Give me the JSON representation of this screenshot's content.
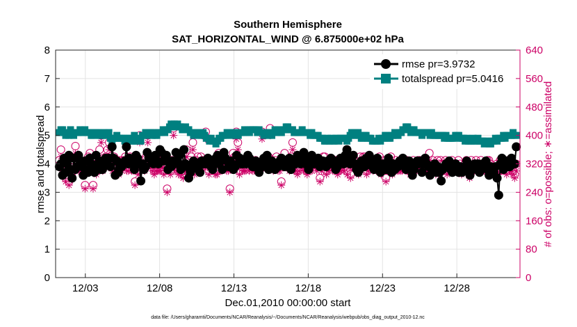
{
  "chart_data": {
    "type": "line",
    "title": "Southern Hemisphere",
    "subtitle": "SAT_HORIZONTAL_WIND @ 6.875000e+02 hPa",
    "xlabel": "Dec.01,2010 00:00:00 start",
    "ylabel_left": "rmse and totalspread",
    "ylabel_right": "# of obs: o=possible; ∗=assimilated",
    "xlim": [
      1,
      32.25
    ],
    "ylim_left": [
      0,
      8
    ],
    "ylim_right": [
      0,
      640
    ],
    "yticks_left": [
      "0",
      "1",
      "2",
      "3",
      "4",
      "5",
      "6",
      "7",
      "8"
    ],
    "yticks_right": [
      "0",
      "80",
      "160",
      "240",
      "320",
      "400",
      "480",
      "560",
      "640"
    ],
    "xticks": [
      {
        "day": 3,
        "label": "12/03"
      },
      {
        "day": 8,
        "label": "12/08"
      },
      {
        "day": 13,
        "label": "12/13"
      },
      {
        "day": 18,
        "label": "12/18"
      },
      {
        "day": 23,
        "label": "12/23"
      },
      {
        "day": 28,
        "label": "12/28"
      }
    ],
    "grid": true,
    "legend_location": "top-right",
    "series": [
      {
        "name": "rmse",
        "legend_label": "rmse pr=3.9732",
        "color": "#000000",
        "marker": "circle",
        "axis": "left",
        "values": [
          3.9,
          4.0,
          3.6,
          4.2,
          3.7,
          4.0,
          4.3,
          3.8,
          3.5,
          4.2,
          3.8,
          3.9,
          4.3,
          4.0,
          3.9,
          3.6,
          4.1,
          3.8,
          3.7,
          4.2,
          4.0,
          3.9,
          3.7,
          4.3,
          3.9,
          4.1,
          3.8,
          3.8,
          4.0,
          4.2,
          4.1,
          4.2,
          3.9,
          4.6,
          4.2,
          3.6,
          4.1,
          3.7,
          3.9,
          3.9,
          4.0,
          4.1,
          4.6,
          4.0,
          4.2,
          4.0,
          4.1,
          3.8,
          4.3,
          4.2,
          4.0,
          3.4,
          4.0,
          3.8,
          3.9,
          4.4,
          4.2,
          4.2,
          4.1,
          4.0,
          4.3,
          4.1,
          4.0,
          4.5,
          4.4,
          4.1,
          4.2,
          4.3,
          3.8,
          4.0,
          3.9,
          4.1,
          4.0,
          4.4,
          4.1,
          4.3,
          3.8,
          3.9,
          4.5,
          4.0,
          3.9,
          3.5,
          3.7,
          3.8,
          4.1,
          4.0,
          3.9,
          3.8,
          3.7,
          4.1,
          4.0,
          4.0,
          4.0,
          4.2,
          4.1,
          3.9,
          3.8,
          4.0,
          4.2,
          4.3,
          4.0,
          4.1,
          3.8,
          4.4,
          4.2,
          4.1,
          3.9,
          4.1,
          4.0,
          3.8,
          3.9,
          4.3,
          4.0,
          4.2,
          4.0,
          4.0,
          4.1,
          4.0,
          4.3,
          4.2,
          4.1,
          3.9,
          3.9,
          4.1,
          4.0,
          3.7,
          4.0,
          3.9,
          4.2,
          4.1,
          4.3,
          3.8,
          3.9,
          4.1,
          4.0,
          3.8,
          4.0,
          3.9,
          4.1,
          4.2,
          4.0,
          3.9,
          4.0,
          3.9,
          4.2,
          3.8,
          4.1,
          4.0,
          4.0,
          4.3,
          4.2,
          4.0,
          4.1,
          4.4,
          4.0,
          4.2,
          3.8,
          4.1,
          4.3,
          4.0,
          4.1,
          4.0,
          4.2,
          3.9,
          4.0,
          4.1,
          4.0,
          3.9,
          4.1,
          4.0,
          4.2,
          4.0,
          4.1,
          3.8,
          3.9,
          4.0,
          4.2,
          4.1,
          4.0,
          4.3,
          4.5,
          4.2,
          4.0,
          4.1,
          4.3,
          4.0,
          3.8,
          3.7,
          3.8,
          4.1,
          4.0,
          3.9,
          4.2,
          4.0,
          4.3,
          4.1,
          3.9,
          3.8,
          4.0,
          4.2,
          3.9,
          3.7,
          3.9,
          4.0,
          3.8,
          3.8,
          4.2,
          3.9,
          3.7,
          4.0,
          3.8,
          3.9,
          3.9,
          4.1,
          4.0,
          4.2,
          4.0,
          3.8,
          3.9,
          4.1,
          4.0,
          3.6,
          3.8,
          4.0,
          4.1,
          4.0,
          4.1,
          3.7,
          4.0,
          4.2,
          4.0,
          3.9,
          3.6,
          3.9,
          3.8,
          4.0,
          3.7,
          3.9,
          3.7,
          3.4,
          3.8,
          3.9,
          4.0,
          3.9,
          4.1,
          3.8,
          3.7,
          3.9,
          4.0,
          3.8,
          3.7,
          3.9,
          3.7,
          3.8,
          3.9,
          4.1,
          4.0,
          3.6,
          3.8,
          3.9,
          4.0,
          3.8,
          4.0,
          3.7,
          3.8,
          4.0,
          3.9,
          4.1,
          3.8,
          3.6,
          3.9,
          3.8,
          3.7,
          3.9,
          3.5,
          2.9,
          4.0,
          4.2,
          3.8,
          3.9,
          4.1,
          3.9,
          3.9,
          4.2,
          4.0,
          4.0,
          4.6
        ]
      },
      {
        "name": "totalspread",
        "legend_label": "totalspread pr=5.0416",
        "color": "#008080",
        "marker": "square",
        "axis": "left",
        "values": [
          5.1,
          5.2,
          5.2,
          5.1,
          5.0,
          5.1,
          5.0,
          5.2,
          5.1,
          5.0,
          5.1,
          5.1,
          5.1,
          5.2,
          5.1,
          5.1,
          5.2,
          5.1,
          5.1,
          5.1,
          5.0,
          5.0,
          5.1,
          5.1,
          5.1,
          5.0,
          5.0,
          5.0,
          5.1,
          5.0,
          5.0,
          5.1,
          4.9,
          4.8,
          4.9,
          4.9,
          5.0,
          4.9,
          4.9,
          4.9,
          4.9,
          4.8,
          4.8,
          4.9,
          4.9,
          4.8,
          4.8,
          5.0,
          4.8,
          4.9,
          4.8,
          4.8,
          5.0,
          5.0,
          5.1,
          5.0,
          5.1,
          5.1,
          5.0,
          5.1,
          5.0,
          5.0,
          5.1,
          5.1,
          5.1,
          5.2,
          5.1,
          5.2,
          5.2,
          5.3,
          5.4,
          5.3,
          5.4,
          5.3,
          5.4,
          5.3,
          5.3,
          5.2,
          5.2,
          5.3,
          5.2,
          5.2,
          5.1,
          5.1,
          5.0,
          5.1,
          5.1,
          5.0,
          5.1,
          5.0,
          5.1,
          5.0,
          4.9,
          4.9,
          4.8,
          4.9,
          4.8,
          4.8,
          4.7,
          4.8,
          4.9,
          4.9,
          5.0,
          5.0,
          5.0,
          5.1,
          5.1,
          5.1,
          5.0,
          5.1,
          5.1,
          5.0,
          5.0,
          5.1,
          5.1,
          5.1,
          5.2,
          5.1,
          5.2,
          5.1,
          5.2,
          5.2,
          5.2,
          5.2,
          5.1,
          5.2,
          5.1,
          5.1,
          5.0,
          5.1,
          5.1,
          5.0,
          5.1,
          5.0,
          5.1,
          5.2,
          5.1,
          5.2,
          5.1,
          5.1,
          5.2,
          5.2,
          5.3,
          5.3,
          5.2,
          5.2,
          5.2,
          5.1,
          5.1,
          5.1,
          5.1,
          5.1,
          5.2,
          5.1,
          5.1,
          5.1,
          5.1,
          5.0,
          5.1,
          5.0,
          5.0,
          5.0,
          5.0,
          4.9,
          4.9,
          4.9,
          4.8,
          4.8,
          4.9,
          4.8,
          4.9,
          4.8,
          4.8,
          4.9,
          4.9,
          4.8,
          4.9,
          4.9,
          4.9,
          4.9,
          4.8,
          4.9,
          5.0,
          5.1,
          5.0,
          5.1,
          5.0,
          5.1,
          5.0,
          4.9,
          4.9,
          5.0,
          5.0,
          4.9,
          4.9,
          4.9,
          4.8,
          4.8,
          4.8,
          4.8,
          4.9,
          4.8,
          4.9,
          4.9,
          5.0,
          5.0,
          4.9,
          4.9,
          5.0,
          5.0,
          5.1,
          5.0,
          5.0,
          5.1,
          5.1,
          5.2,
          5.2,
          5.3,
          5.3,
          5.2,
          5.1,
          5.2,
          5.2,
          5.1,
          5.1,
          5.1,
          5.1,
          5.0,
          5.1,
          5.1,
          5.1,
          5.1,
          5.0,
          5.1,
          5.0,
          5.0,
          5.0,
          5.0,
          5.0,
          5.0,
          5.0,
          4.9,
          5.0,
          4.9,
          4.9,
          4.9,
          4.9,
          4.9,
          5.0,
          5.0,
          5.0,
          4.9,
          4.9,
          4.9,
          4.8,
          4.9,
          4.8,
          4.8,
          4.8,
          4.9,
          4.8,
          4.8,
          4.9,
          4.8,
          4.8,
          4.8,
          4.7,
          4.8,
          4.8,
          4.7,
          4.7,
          4.8,
          4.8,
          4.9,
          4.8,
          4.9,
          4.9,
          4.9,
          5.0,
          4.9,
          5.0,
          5.0,
          5.0,
          5.0,
          5.1,
          5.0,
          5.0
        ]
      },
      {
        "name": "obs_possible",
        "color": "#cc0066",
        "marker": "open-circle",
        "axis": "right",
        "values": [
          330,
          360,
          320,
          310,
          280,
          330,
          270,
          320,
          300,
          330,
          370,
          330,
          340,
          310,
          300,
          320,
          260,
          330,
          340,
          350,
          320,
          260,
          340,
          300,
          310,
          360,
          400,
          310,
          330,
          340,
          360,
          380,
          330,
          310,
          340,
          320,
          330,
          300,
          330,
          310,
          330,
          340,
          320,
          310,
          340,
          320,
          310,
          270,
          330,
          300,
          400,
          320,
          330,
          320,
          340,
          400,
          340,
          330,
          320,
          300,
          320,
          310,
          320,
          310,
          330,
          300,
          320,
          250,
          330,
          300,
          330,
          420,
          330,
          320,
          300,
          310,
          300,
          290,
          320,
          360,
          300,
          330,
          340,
          380,
          300,
          330,
          340,
          310,
          340,
          330,
          330,
          410,
          330,
          300,
          330,
          320,
          330,
          300,
          300,
          350,
          320,
          310,
          330,
          330,
          320,
          310,
          250,
          330,
          350,
          340,
          410,
          380,
          300,
          330,
          310,
          320,
          310,
          340,
          320,
          330,
          320,
          320,
          330,
          320,
          320,
          320,
          410,
          330,
          330,
          340,
          340,
          420,
          330,
          310,
          330,
          340,
          310,
          320,
          270,
          330,
          350,
          330,
          330,
          310,
          340,
          380,
          320,
          320,
          300,
          310,
          340,
          330,
          320,
          320,
          300,
          330,
          320,
          320,
          330,
          330,
          320,
          330,
          280,
          320,
          340,
          340,
          300,
          310,
          330,
          330,
          320,
          320,
          330,
          300,
          320,
          310,
          330,
          310,
          340,
          300,
          330,
          290,
          330,
          330,
          330,
          320,
          300,
          340,
          330,
          340,
          340,
          300,
          320,
          330,
          330,
          320,
          330,
          310,
          330,
          340,
          300,
          320,
          330,
          280,
          320,
          330,
          340,
          300,
          320,
          330,
          320,
          310,
          320,
          310,
          330,
          320,
          330,
          320,
          300,
          320,
          330,
          320,
          310,
          330,
          330,
          320,
          330,
          330,
          320,
          310,
          350,
          320,
          330,
          320,
          300,
          330,
          320,
          330,
          320,
          320,
          330,
          300,
          320,
          310,
          330,
          320,
          320,
          310,
          330,
          320,
          300,
          310,
          320,
          330,
          320,
          290,
          330,
          310,
          320,
          330,
          320,
          320,
          330,
          320,
          310,
          320,
          330,
          330,
          320,
          310,
          300,
          310,
          320,
          300,
          330,
          320,
          310,
          320,
          300,
          330,
          320,
          310,
          300,
          290,
          320
        ]
      },
      {
        "name": "obs_assimilated",
        "color": "#cc0066",
        "marker": "asterisk",
        "axis": "right",
        "values": [
          310,
          340,
          300,
          290,
          270,
          310,
          260,
          300,
          290,
          310,
          350,
          310,
          320,
          300,
          290,
          300,
          250,
          310,
          320,
          330,
          300,
          250,
          320,
          290,
          300,
          340,
          380,
          300,
          310,
          320,
          340,
          360,
          310,
          300,
          320,
          300,
          310,
          290,
          310,
          300,
          310,
          320,
          300,
          300,
          320,
          300,
          300,
          260,
          310,
          290,
          380,
          300,
          310,
          300,
          320,
          380,
          320,
          310,
          300,
          290,
          300,
          300,
          300,
          300,
          310,
          290,
          300,
          240,
          310,
          290,
          310,
          400,
          310,
          300,
          290,
          300,
          290,
          280,
          300,
          340,
          290,
          310,
          320,
          360,
          290,
          310,
          320,
          300,
          320,
          310,
          310,
          390,
          310,
          290,
          310,
          300,
          310,
          290,
          290,
          330,
          300,
          300,
          310,
          310,
          300,
          300,
          240,
          310,
          330,
          320,
          390,
          360,
          290,
          310,
          300,
          300,
          300,
          320,
          300,
          310,
          300,
          300,
          310,
          300,
          300,
          300,
          390,
          310,
          310,
          320,
          320,
          400,
          310,
          300,
          310,
          320,
          300,
          300,
          260,
          310,
          330,
          310,
          310,
          300,
          320,
          360,
          300,
          300,
          290,
          300,
          320,
          310,
          300,
          300,
          290,
          310,
          300,
          300,
          310,
          310,
          300,
          310,
          270,
          300,
          320,
          320,
          290,
          300,
          310,
          310,
          300,
          300,
          310,
          290,
          300,
          300,
          310,
          300,
          320,
          290,
          310,
          280,
          310,
          310,
          310,
          300,
          290,
          320,
          310,
          320,
          320,
          290,
          300,
          310,
          310,
          300,
          310,
          300,
          310,
          320,
          290,
          300,
          310,
          270,
          300,
          310,
          320,
          290,
          300,
          310,
          300,
          300,
          300,
          300,
          310,
          300,
          310,
          300,
          290,
          300,
          310,
          300,
          300,
          310,
          310,
          300,
          310,
          310,
          300,
          300,
          330,
          300,
          310,
          300,
          290,
          310,
          300,
          310,
          300,
          300,
          310,
          290,
          300,
          300,
          310,
          300,
          300,
          300,
          310,
          300,
          290,
          300,
          300,
          310,
          300,
          280,
          310,
          300,
          300,
          310,
          300,
          300,
          310,
          300,
          300,
          300,
          310,
          310,
          300,
          300,
          290,
          300,
          300,
          290,
          310,
          300,
          300,
          300,
          290,
          310,
          300,
          300,
          290,
          280,
          300
        ]
      }
    ],
    "footer": "data file: /Users/gharamti/Documents/NCAR/Reanalysis/~/Documents/NCAR/Reanalysis/webpub/obs_diag_output_2010-12.nc"
  }
}
